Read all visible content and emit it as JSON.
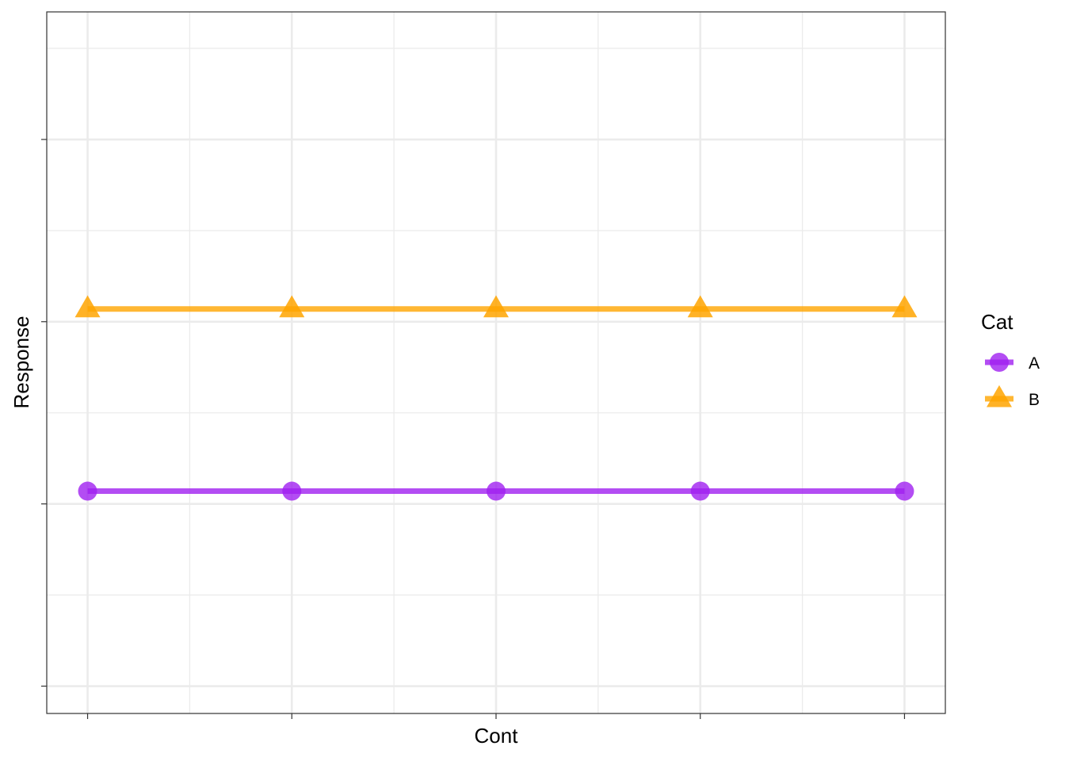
{
  "chart_data": {
    "type": "line",
    "xlabel": "Cont",
    "ylabel": "Response",
    "x": [
      1,
      2,
      3,
      4,
      5
    ],
    "xlim": [
      0.8,
      5.2
    ],
    "ylim": [
      -0.15,
      3.7
    ],
    "y_major_ticks": [
      0,
      1,
      2,
      3
    ],
    "x_major_ticks": [
      1,
      2,
      3,
      4,
      5
    ],
    "tick_labels_shown": false,
    "grid": true,
    "legend": {
      "title": "Cat",
      "placement": "right"
    },
    "series": [
      {
        "name": "A",
        "values": [
          1.07,
          1.07,
          1.07,
          1.07,
          1.07
        ],
        "color": "#A020F0",
        "marker": "circle"
      },
      {
        "name": "B",
        "values": [
          2.07,
          2.07,
          2.07,
          2.07,
          2.07
        ],
        "color": "#FFA500",
        "marker": "triangle"
      }
    ]
  }
}
